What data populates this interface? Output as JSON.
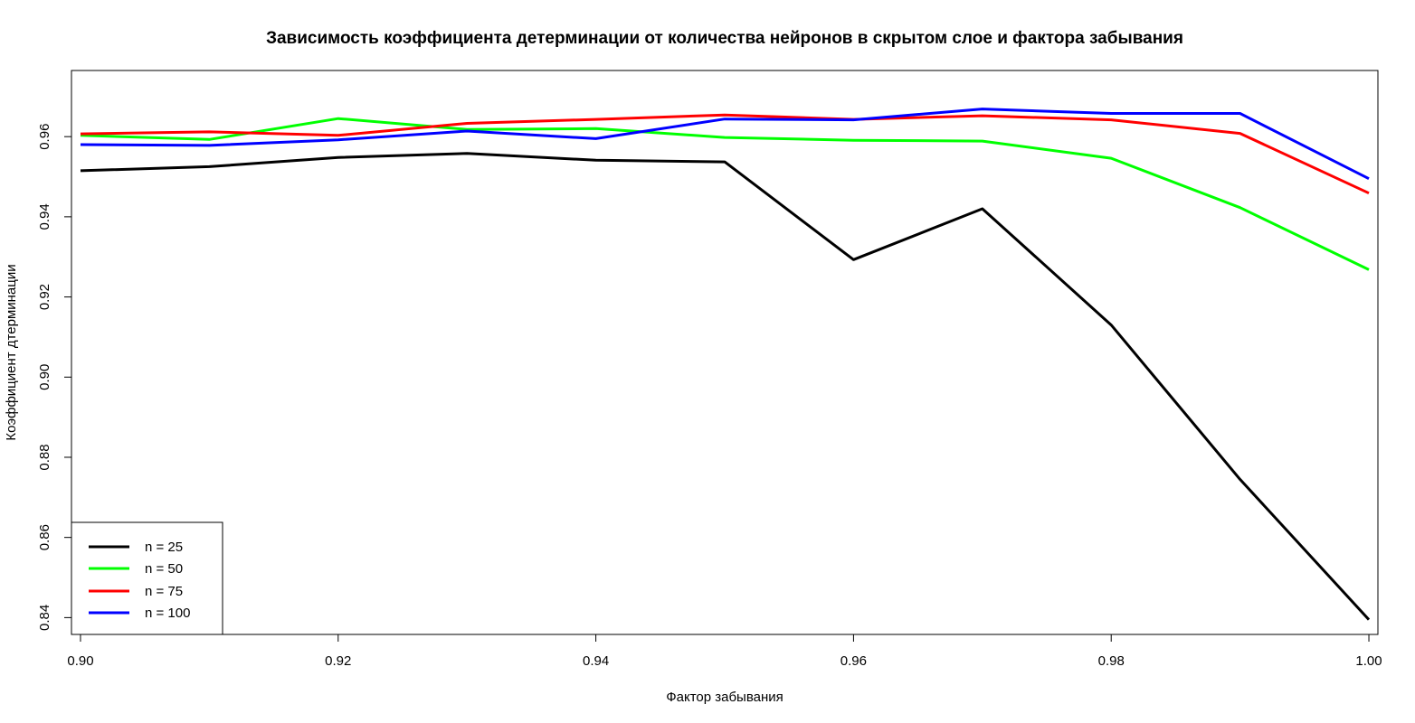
{
  "chart_data": {
    "type": "line",
    "title": "Зависимость коэффициента детерминации от количества нейронов в скрытом слое и фактора забывания",
    "xlabel": "Фактор забывания",
    "ylabel": "Коэффициент дтерминации",
    "x": [
      0.9,
      0.91,
      0.92,
      0.93,
      0.94,
      0.95,
      0.96,
      0.97,
      0.98,
      0.99,
      1.0
    ],
    "xlim": [
      0.8993,
      1.0007
    ],
    "ylim": [
      0.8358,
      0.9765
    ],
    "xticks": [
      0.9,
      0.92,
      0.94,
      0.96,
      0.98,
      1.0
    ],
    "xtick_labels": [
      "0.90",
      "0.92",
      "0.94",
      "0.96",
      "0.98",
      "1.00"
    ],
    "yticks": [
      0.84,
      0.86,
      0.88,
      0.9,
      0.92,
      0.94,
      0.96
    ],
    "ytick_labels": [
      "0.84",
      "0.86",
      "0.88",
      "0.90",
      "0.92",
      "0.94",
      "0.96"
    ],
    "grid": false,
    "legend_position": "bottom-left",
    "series": [
      {
        "name": "n = 25",
        "color": "#000000",
        "values": [
          0.9515,
          0.9525,
          0.9548,
          0.9558,
          0.9541,
          0.9537,
          0.9293,
          0.942,
          0.913,
          0.8745,
          0.8395
        ]
      },
      {
        "name": "n = 50",
        "color": "#00ff00",
        "values": [
          0.9603,
          0.9593,
          0.9645,
          0.9618,
          0.962,
          0.9598,
          0.9591,
          0.9589,
          0.9546,
          0.9423,
          0.9268
        ]
      },
      {
        "name": "n = 75",
        "color": "#ff0000",
        "values": [
          0.9607,
          0.9612,
          0.9603,
          0.9633,
          0.9643,
          0.9654,
          0.9643,
          0.9652,
          0.9642,
          0.9608,
          0.9459
        ]
      },
      {
        "name": "n = 100",
        "color": "#0000ff",
        "values": [
          0.958,
          0.9578,
          0.9592,
          0.9614,
          0.9595,
          0.9644,
          0.9642,
          0.9669,
          0.9658,
          0.9658,
          0.9495
        ]
      }
    ]
  }
}
